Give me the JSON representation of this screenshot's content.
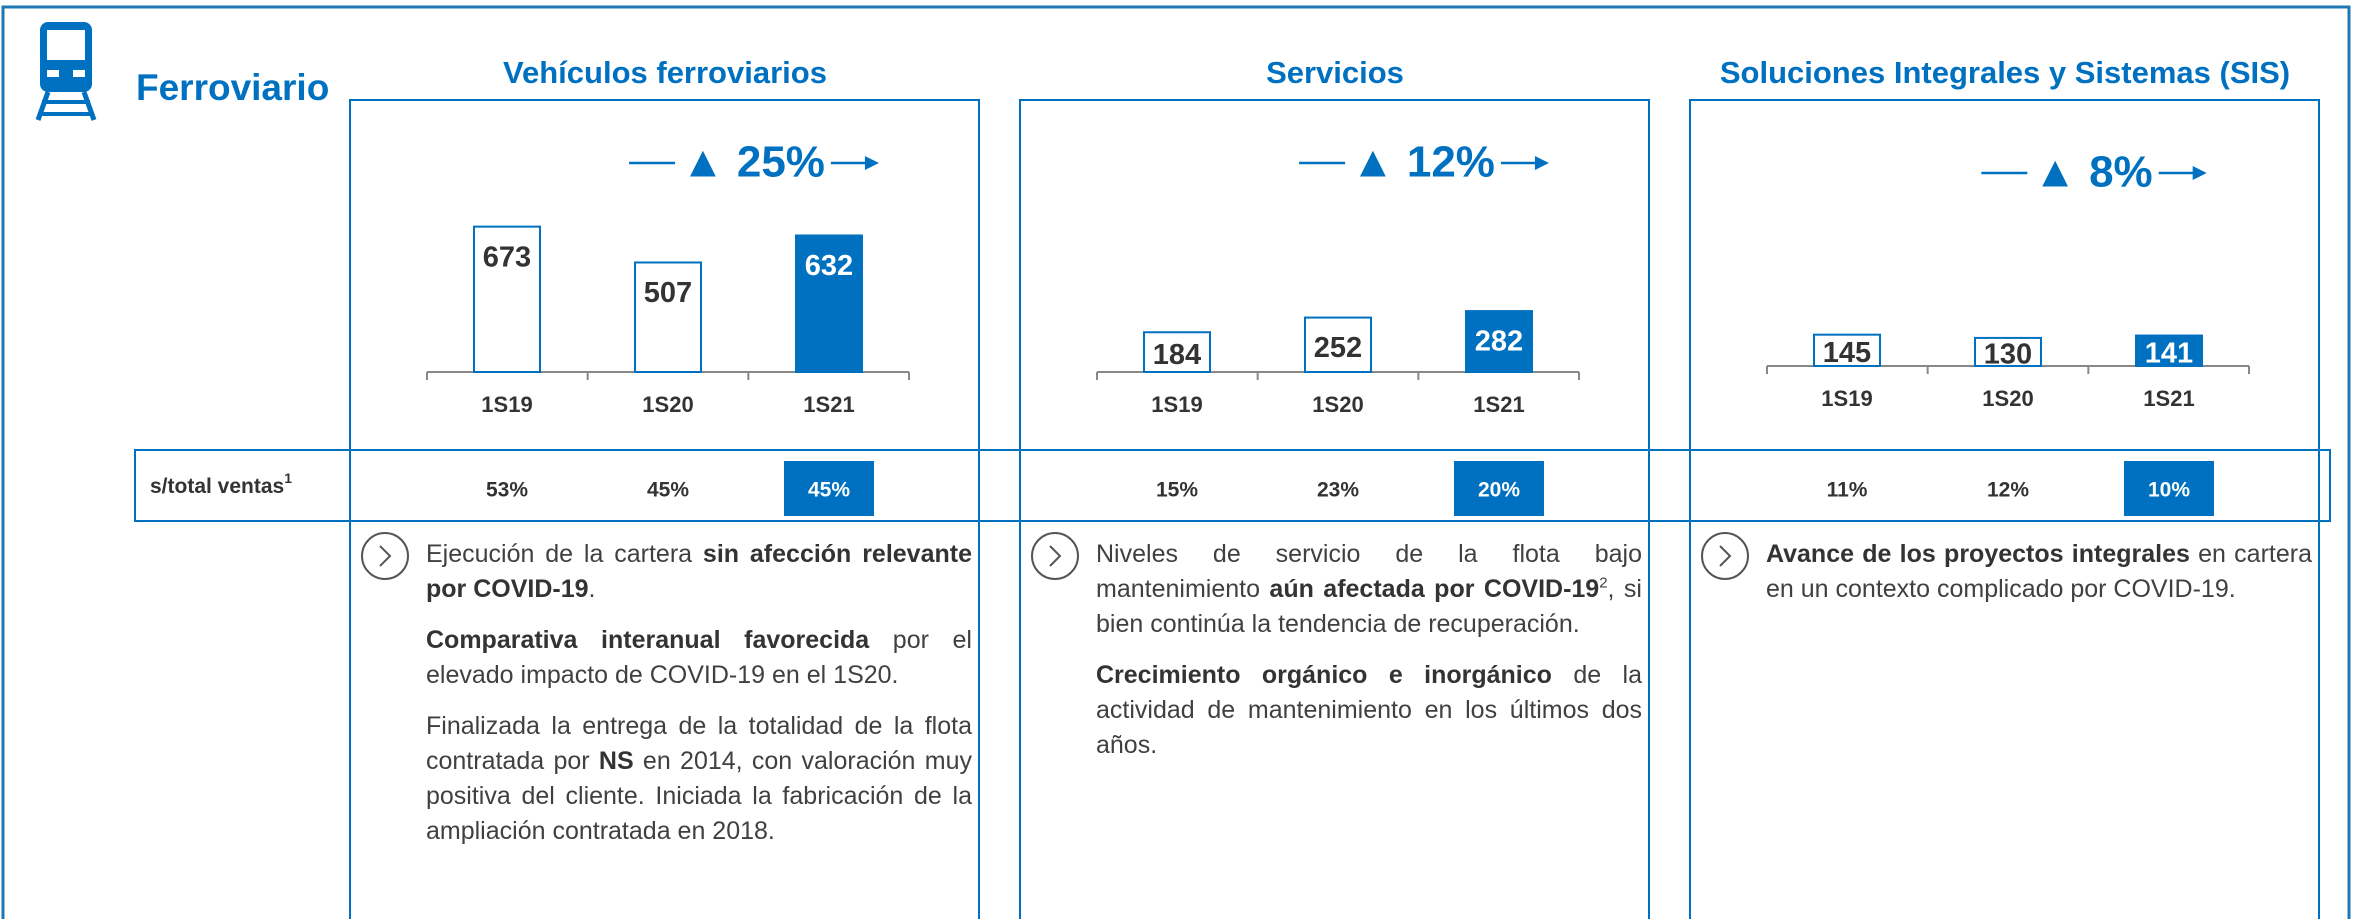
{
  "header": {
    "title": "Ferroviario"
  },
  "share_row": {
    "label": "s/total ventas",
    "sup": "1"
  },
  "chart_data": [
    {
      "type": "bar",
      "title": "Vehículos ferroviarios",
      "annotation": "▲ 25%",
      "categories": [
        "1S19",
        "1S20",
        "1S21"
      ],
      "values": [
        673,
        507,
        632
      ],
      "colors": [
        "#ffffff",
        "#ffffff",
        "#0070c0"
      ],
      "shares": [
        "53%",
        "45%",
        "45%"
      ]
    },
    {
      "type": "bar",
      "title": "Servicios",
      "annotation": "▲ 12%",
      "categories": [
        "1S19",
        "1S20",
        "1S21"
      ],
      "values": [
        184,
        252,
        282
      ],
      "colors": [
        "#ffffff",
        "#ffffff",
        "#0070c0"
      ],
      "shares": [
        "15%",
        "23%",
        "20%"
      ]
    },
    {
      "type": "bar",
      "title": "Soluciones Integrales y Sistemas (SIS)",
      "annotation": "▲ 8%",
      "categories": [
        "1S19",
        "1S20",
        "1S21"
      ],
      "values": [
        145,
        130,
        141
      ],
      "colors": [
        "#ffffff",
        "#ffffff",
        "#0070c0"
      ],
      "shares": [
        "11%",
        "12%",
        "10%"
      ]
    }
  ],
  "panels": [
    {
      "paragraphs": [
        [
          {
            "text": "Ejecución de la cartera "
          },
          {
            "text": "sin afección relevante por COVID-19",
            "bold": true
          },
          {
            "text": "."
          }
        ],
        [
          {
            "text": "Comparativa interanual favorecida",
            "bold": true
          },
          {
            "text": " por el elevado impacto de COVID-19 en el 1S20."
          }
        ],
        [
          {
            "text": "Finalizada la entrega de la totalidad de la flota contratada por "
          },
          {
            "text": "NS",
            "bold": true
          },
          {
            "text": " en 2014, con valoración muy positiva del cliente. Iniciada la fabricación de la ampliación contratada en 2018."
          }
        ]
      ]
    },
    {
      "paragraphs": [
        [
          {
            "text": "Niveles de servicio de la flota bajo mantenimiento "
          },
          {
            "text": "aún afectada por COVID-19",
            "bold": true
          },
          {
            "text": "2",
            "sup": true
          },
          {
            "text": ", si bien continúa la tendencia de recuperación."
          }
        ],
        [
          {
            "text": "Crecimiento orgánico e inorgánico",
            "bold": true
          },
          {
            "text": " de la actividad de mantenimiento en los últimos dos años."
          }
        ]
      ]
    },
    {
      "paragraphs": [
        [
          {
            "text": "Avance de los proyectos integrales",
            "bold": true
          },
          {
            "text": " en cartera en un contexto complicado por COVID-19."
          }
        ]
      ]
    }
  ]
}
